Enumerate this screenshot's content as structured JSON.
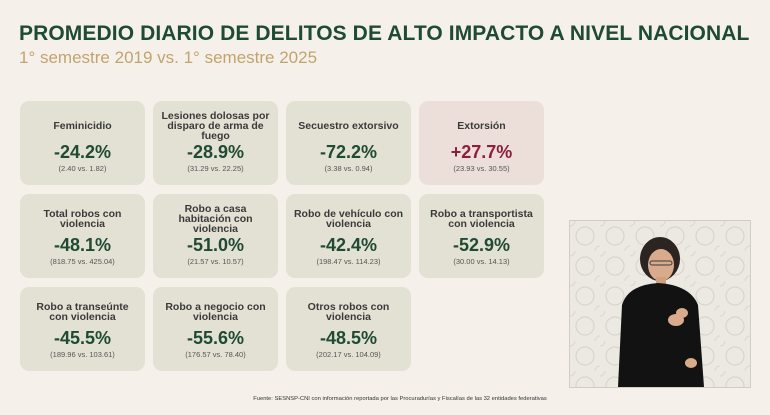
{
  "header": {
    "title": "PROMEDIO DIARIO DE DELITOS DE ALTO IMPACTO A NIVEL NACIONAL",
    "subtitle": "1° semestre 2019 vs. 1° semestre 2025"
  },
  "cards": [
    {
      "label": "Feminicidio",
      "value": "-24.2%",
      "detail": "(2.40 vs. 1.82)"
    },
    {
      "label": "Lesiones dolosas por disparo de arma de fuego",
      "value": "-28.9%",
      "detail": "(31.29 vs. 22.25)"
    },
    {
      "label": "Secuestro extorsivo",
      "value": "-72.2%",
      "detail": "(3.38 vs. 0.94)"
    },
    {
      "label": "Extorsión",
      "value": "+27.7%",
      "detail": "(23.93 vs. 30.55)"
    },
    {
      "label": "Total robos con violencia",
      "value": "-48.1%",
      "detail": "(818.75 vs. 425.04)"
    },
    {
      "label": "Robo a casa habitación con violencia",
      "value": "-51.0%",
      "detail": "(21.57 vs. 10.57)"
    },
    {
      "label": "Robo de vehículo con violencia",
      "value": "-42.4%",
      "detail": "(198.47 vs. 114.23)"
    },
    {
      "label": "Robo a transportista con violencia",
      "value": "-52.9%",
      "detail": "(30.00 vs. 14.13)"
    },
    {
      "label": "Robo a transeúnte con violencia",
      "value": "-45.5%",
      "detail": "(189.96 vs. 103.61)"
    },
    {
      "label": "Robo a negocio con violencia",
      "value": "-55.6%",
      "detail": "(176.57 vs. 78.40)"
    },
    {
      "label": "Otros robos con violencia",
      "value": "-48.5%",
      "detail": "(202.17 vs. 104.09)"
    }
  ],
  "footer": {
    "source": "Fuente: SESNSP-CNI con información reportada por las Procuradurías y Fiscalías de las 32 entidades federativas"
  },
  "colors": {
    "title": "#1f4a33",
    "subtitle": "#c2a36d",
    "positive_change": "#8c1f3c",
    "negative_change": "#1f4a33"
  }
}
